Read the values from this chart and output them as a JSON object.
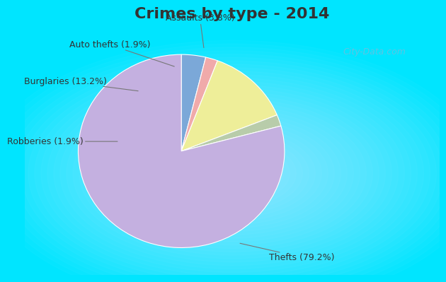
{
  "title": "Crimes by type - 2014",
  "slices": [
    {
      "label": "Thefts (79.2%)",
      "value": 79.2,
      "color": "#c4b0e0"
    },
    {
      "label": "Assaults (3.8%)",
      "value": 3.8,
      "color": "#7ba8d8"
    },
    {
      "label": "Auto thefts (1.9%)",
      "value": 1.9,
      "color": "#f0aaaa"
    },
    {
      "label": "Burglaries (13.2%)",
      "value": 13.2,
      "color": "#eeee99"
    },
    {
      "label": "Robberies (1.9%)",
      "value": 1.9,
      "color": "#b8ccaa"
    }
  ],
  "background_border": "#00e5ff",
  "background_inner": "#cce8d8",
  "title_fontsize": 16,
  "label_fontsize": 9,
  "watermark": "City-Data.com"
}
